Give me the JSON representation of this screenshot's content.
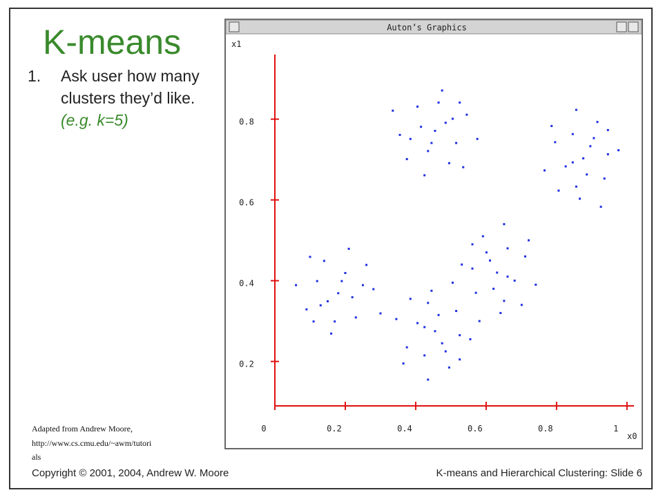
{
  "slide": {
    "title": "K-means",
    "item_number": "1.",
    "item_lines": [
      "Ask user how many",
      "clusters they’d like."
    ],
    "item_example": "(e.g. k=5)",
    "footnote_lines": [
      "Adapted from Andrew Moore,",
      "http://www.cs.cmu.edu/~awm/tutori",
      "als"
    ],
    "copyright": "Copyright © 2001, 2004, Andrew W. Moore",
    "slide_label": "K-means and Hierarchical Clustering: Slide 6"
  },
  "window": {
    "title": "Auton’s Graphics"
  },
  "chart_data": {
    "type": "scatter",
    "color": "#1f2fe0",
    "y_label": "x1",
    "x_label": "x0",
    "xlim": [
      0,
      1.02
    ],
    "ylim": [
      0.09,
      0.96
    ],
    "xticks": [
      0,
      0.2,
      0.4,
      0.6,
      0.8,
      1
    ],
    "yticks": [
      0.2,
      0.4,
      0.6,
      0.8
    ],
    "axis_color": "#e01010",
    "x": [
      0.455,
      0.485,
      0.415,
      0.515,
      0.435,
      0.465,
      0.385,
      0.545,
      0.405,
      0.495,
      0.355,
      0.475,
      0.525,
      0.375,
      0.575,
      0.425,
      0.505,
      0.445,
      0.335,
      0.535,
      0.876,
      0.896,
      0.886,
      0.846,
      0.826,
      0.946,
      0.856,
      0.916,
      0.936,
      0.796,
      0.866,
      0.976,
      0.946,
      0.806,
      0.856,
      0.766,
      0.906,
      0.846,
      0.926,
      0.786,
      0.18,
      0.15,
      0.22,
      0.12,
      0.2,
      0.17,
      0.25,
      0.09,
      0.23,
      0.14,
      0.28,
      0.16,
      0.11,
      0.26,
      0.06,
      0.21,
      0.13,
      0.19,
      0.3,
      0.1,
      0.631,
      0.611,
      0.621,
      0.661,
      0.681,
      0.561,
      0.651,
      0.591,
      0.571,
      0.711,
      0.641,
      0.531,
      0.561,
      0.701,
      0.651,
      0.741,
      0.601,
      0.661,
      0.581,
      0.721,
      0.455,
      0.475,
      0.465,
      0.425,
      0.405,
      0.525,
      0.435,
      0.495,
      0.515,
      0.375,
      0.445,
      0.555,
      0.525,
      0.385,
      0.435,
      0.345,
      0.485,
      0.425,
      0.505,
      0.365
    ],
    "y": [
      0.771,
      0.791,
      0.781,
      0.741,
      0.721,
      0.841,
      0.751,
      0.811,
      0.831,
      0.691,
      0.761,
      0.871,
      0.841,
      0.701,
      0.751,
      0.661,
      0.801,
      0.741,
      0.821,
      0.681,
      0.703,
      0.733,
      0.663,
      0.763,
      0.683,
      0.713,
      0.633,
      0.793,
      0.653,
      0.743,
      0.603,
      0.723,
      0.773,
      0.623,
      0.823,
      0.673,
      0.753,
      0.693,
      0.583,
      0.783,
      0.369,
      0.349,
      0.359,
      0.399,
      0.419,
      0.299,
      0.389,
      0.329,
      0.309,
      0.449,
      0.379,
      0.269,
      0.299,
      0.439,
      0.389,
      0.479,
      0.339,
      0.399,
      0.319,
      0.459,
      0.42,
      0.45,
      0.38,
      0.48,
      0.4,
      0.43,
      0.35,
      0.51,
      0.37,
      0.46,
      0.32,
      0.44,
      0.49,
      0.34,
      0.54,
      0.39,
      0.47,
      0.41,
      0.3,
      0.5,
      0.275,
      0.245,
      0.315,
      0.215,
      0.295,
      0.265,
      0.345,
      0.185,
      0.325,
      0.235,
      0.375,
      0.255,
      0.205,
      0.355,
      0.155,
      0.305,
      0.225,
      0.285,
      0.395,
      0.195
    ]
  }
}
